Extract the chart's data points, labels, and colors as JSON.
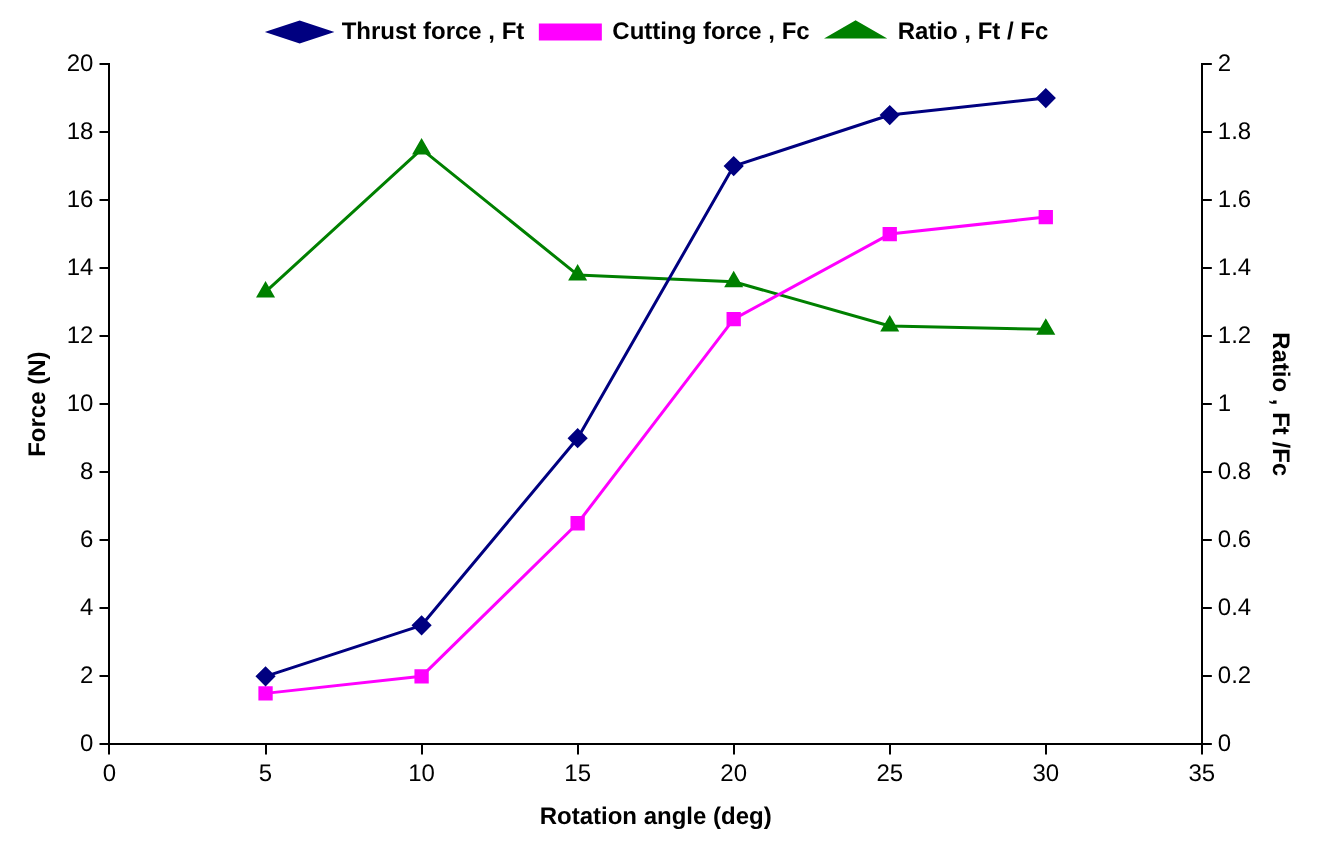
{
  "chart_data": {
    "type": "line",
    "xlabel": "Rotation angle (deg)",
    "ylabel": "Force (N)",
    "y2label": "Ratio , Ft /Fc",
    "x": [
      5,
      10,
      15,
      20,
      25,
      30
    ],
    "series": [
      {
        "name": "Thrust force , Ft",
        "color": "#000080",
        "marker": "diamond",
        "values": [
          2,
          3.5,
          9,
          17,
          18.5,
          19
        ]
      },
      {
        "name": "Cutting force , Fc",
        "color": "#ff00ff",
        "marker": "square",
        "values": [
          1.5,
          2,
          6.5,
          12.5,
          15,
          15.5
        ]
      },
      {
        "name": "Ratio , Ft / Fc",
        "color": "#008000",
        "marker": "triangle",
        "axis": "y2",
        "values": [
          1.33,
          1.75,
          1.38,
          1.36,
          1.23,
          1.22
        ]
      }
    ],
    "xlim": [
      0,
      35
    ],
    "xticks": [
      0,
      5,
      10,
      15,
      20,
      25,
      30,
      35
    ],
    "ylim": [
      0,
      20
    ],
    "yticks": [
      0,
      2,
      4,
      6,
      8,
      10,
      12,
      14,
      16,
      18,
      20
    ],
    "y2lim": [
      0,
      2
    ],
    "y2ticks": [
      0,
      0.2,
      0.4,
      0.6,
      0.8,
      1,
      1.2,
      1.4,
      1.6,
      1.8,
      2
    ],
    "grid": false,
    "legend": "top",
    "line_style": "solid"
  }
}
